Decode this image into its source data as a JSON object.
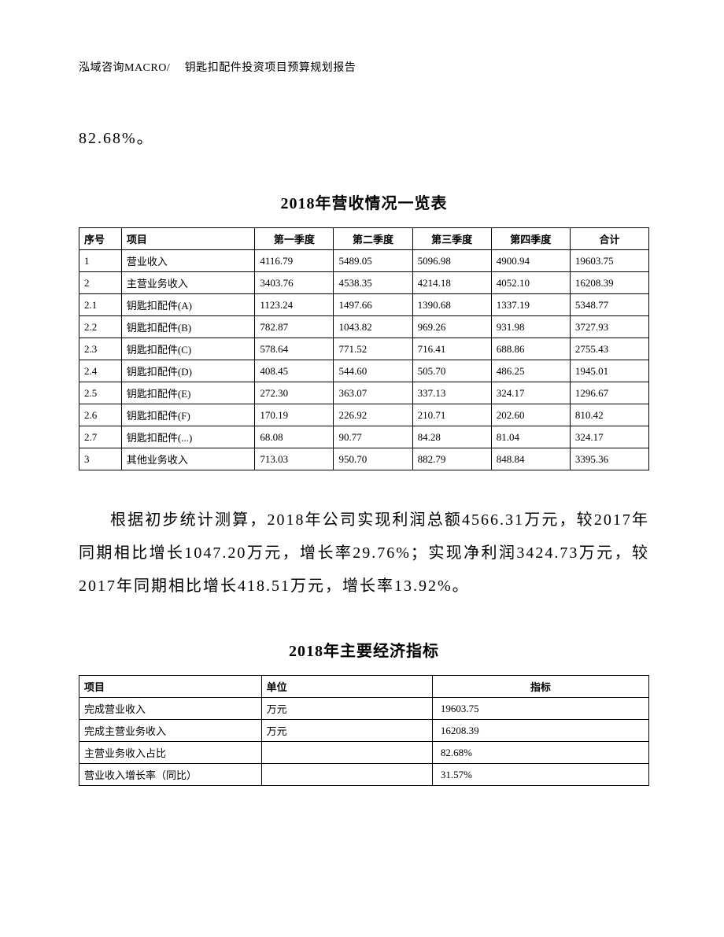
{
  "header": "泓域咨询MACRO/　 钥匙扣配件投资项目预算规划报告",
  "top_text": "82.68%。",
  "table1_title": "2018年营收情况一览表",
  "table1": {
    "headers": [
      "序号",
      "项目",
      "第一季度",
      "第二季度",
      "第三季度",
      "第四季度",
      "合计"
    ],
    "rows": [
      [
        "1",
        "营业收入",
        "4116.79",
        "5489.05",
        "5096.98",
        "4900.94",
        "19603.75"
      ],
      [
        "2",
        "主营业务收入",
        "3403.76",
        "4538.35",
        "4214.18",
        "4052.10",
        "16208.39"
      ],
      [
        "2.1",
        "钥匙扣配件(A)",
        "1123.24",
        "1497.66",
        "1390.68",
        "1337.19",
        "5348.77"
      ],
      [
        "2.2",
        "钥匙扣配件(B)",
        "782.87",
        "1043.82",
        "969.26",
        "931.98",
        "3727.93"
      ],
      [
        "2.3",
        "钥匙扣配件(C)",
        "578.64",
        "771.52",
        "716.41",
        "688.86",
        "2755.43"
      ],
      [
        "2.4",
        "钥匙扣配件(D)",
        "408.45",
        "544.60",
        "505.70",
        "486.25",
        "1945.01"
      ],
      [
        "2.5",
        "钥匙扣配件(E)",
        "272.30",
        "363.07",
        "337.13",
        "324.17",
        "1296.67"
      ],
      [
        "2.6",
        "钥匙扣配件(F)",
        "170.19",
        "226.92",
        "210.71",
        "202.60",
        "810.42"
      ],
      [
        "2.7",
        "钥匙扣配件(...)",
        "68.08",
        "90.77",
        "84.28",
        "81.04",
        "324.17"
      ],
      [
        "3",
        "其他业务收入",
        "713.03",
        "950.70",
        "882.79",
        "848.84",
        "3395.36"
      ]
    ]
  },
  "paragraph": "根据初步统计测算，2018年公司实现利润总额4566.31万元，较2017年同期相比增长1047.20万元，增长率29.76%；实现净利润3424.73万元，较2017年同期相比增长418.51万元，增长率13.92%。",
  "table2_title": "2018年主要经济指标",
  "table2": {
    "headers": [
      "项目",
      "单位",
      "指标"
    ],
    "rows": [
      [
        "完成营业收入",
        "万元",
        "19603.75"
      ],
      [
        "完成主营业务收入",
        "万元",
        "16208.39"
      ],
      [
        "主营业务收入占比",
        "",
        "82.68%"
      ],
      [
        "营业收入增长率（同比）",
        "",
        "31.57%"
      ]
    ]
  }
}
